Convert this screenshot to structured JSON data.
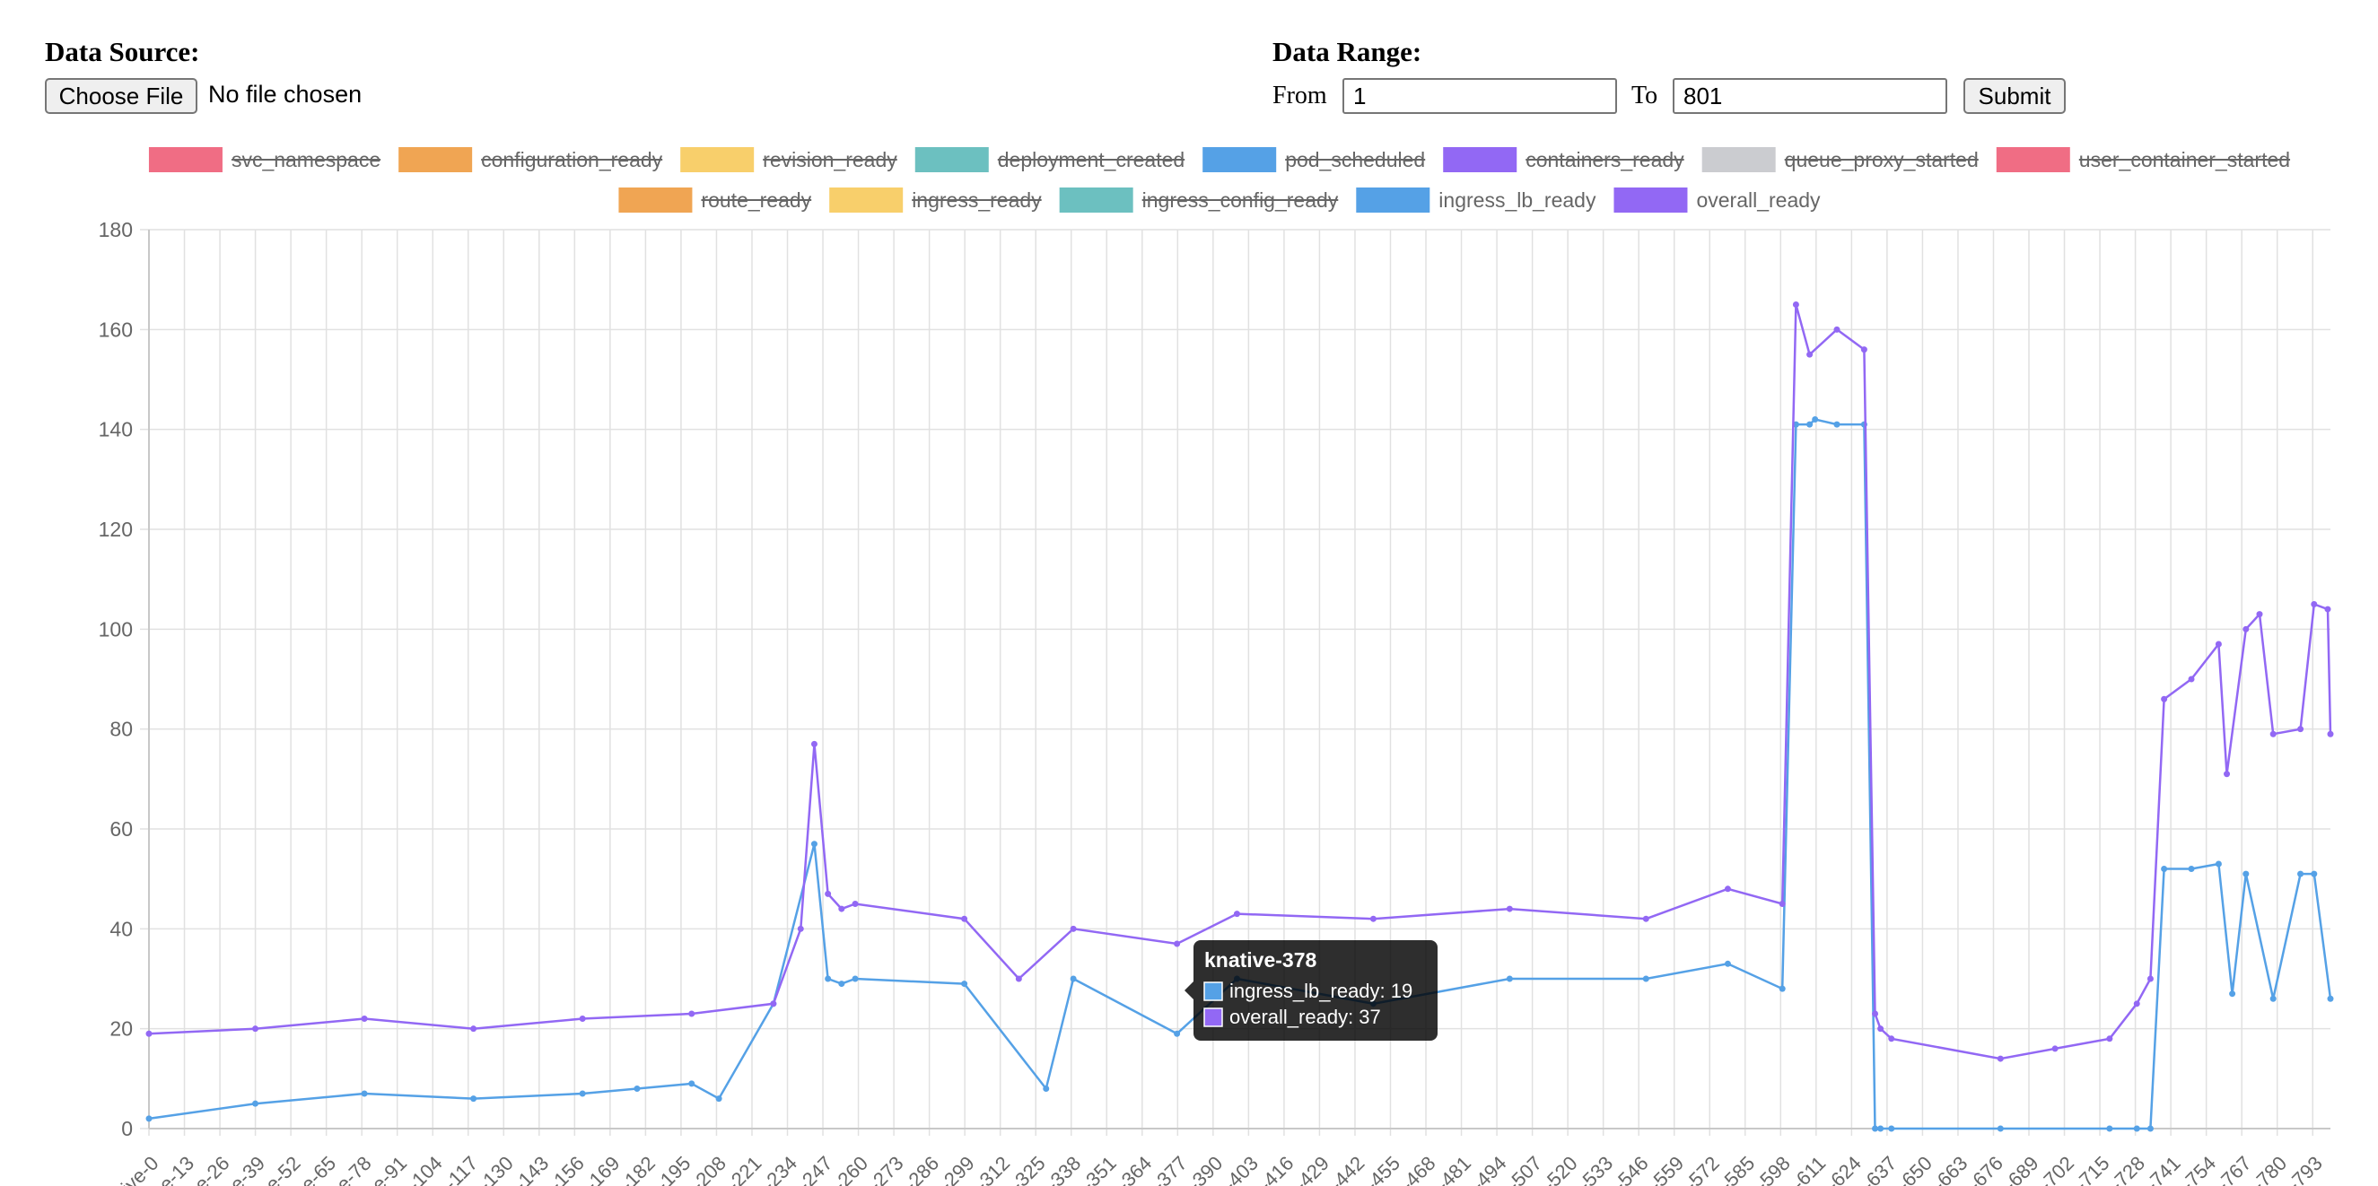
{
  "data_source": {
    "title": "Data Source:",
    "choose_file_label": "Choose File",
    "file_status": "No file chosen"
  },
  "data_range": {
    "title": "Data Range:",
    "from_label": "From",
    "from_value": "1",
    "to_label": "To",
    "to_value": "801",
    "submit_label": "Submit"
  },
  "tooltip": {
    "title": "knative-378",
    "lines": [
      "ingress_lb_ready: 19",
      "overall_ready: 37"
    ]
  },
  "chart_data": {
    "type": "line",
    "ylim": [
      0,
      180
    ],
    "y_ticks": [
      0,
      20,
      40,
      60,
      80,
      100,
      120,
      140,
      160,
      180
    ],
    "grid": true,
    "legend_position": "top",
    "x_tick_labels": [
      "ive-0",
      "e-13",
      "e-26",
      "e-39",
      "e-52",
      "e-65",
      "e-78",
      "e-91",
      "-104",
      "-117",
      "-130",
      "-143",
      "-156",
      "-169",
      "-182",
      "-195",
      "-208",
      "-221",
      "-234",
      "-247",
      "-260",
      "-273",
      "-286",
      "-299",
      "-312",
      "-325",
      "-338",
      "-351",
      "-364",
      "-377",
      "-390",
      "-403",
      "-416",
      "-429",
      "-442",
      "-455",
      "-468",
      "-481",
      "-494",
      "-507",
      "-520",
      "-533",
      "-546",
      "-559",
      "-572",
      "-585",
      "-598",
      "-611",
      "-624",
      "-637",
      "-650",
      "-663",
      "-676",
      "-689",
      "-702",
      "-715",
      "-728",
      "-741",
      "-754",
      "-767",
      "-780",
      "-793"
    ],
    "legend": [
      {
        "name": "svc_namespace",
        "color": "#f06d84",
        "hidden": true
      },
      {
        "name": "configuration_ready",
        "color": "#f0a553",
        "hidden": true
      },
      {
        "name": "revision_ready",
        "color": "#f8cf6b",
        "hidden": true
      },
      {
        "name": "deployment_created",
        "color": "#6cc0c0",
        "hidden": true
      },
      {
        "name": "pod_scheduled",
        "color": "#55a1e6",
        "hidden": true
      },
      {
        "name": "containers_ready",
        "color": "#9268f4",
        "hidden": true
      },
      {
        "name": "queue_proxy_started",
        "color": "#cbccd0",
        "hidden": true
      },
      {
        "name": "user_container_started",
        "color": "#f06d84",
        "hidden": true
      },
      {
        "name": "route_ready",
        "color": "#f0a553",
        "hidden": true
      },
      {
        "name": "ingress_ready",
        "color": "#f8cf6b",
        "hidden": true
      },
      {
        "name": "ingress_config_ready",
        "color": "#6cc0c0",
        "hidden": true
      },
      {
        "name": "ingress_lb_ready",
        "color": "#55a1e6",
        "hidden": false
      },
      {
        "name": "overall_ready",
        "color": "#9268f4",
        "hidden": false
      }
    ],
    "series": [
      {
        "name": "ingress_lb_ready",
        "color": "#55a1e6",
        "x": [
          1,
          40,
          80,
          120,
          160,
          180,
          200,
          210,
          230,
          245,
          250,
          255,
          260,
          300,
          330,
          340,
          378,
          400,
          450,
          500,
          550,
          580,
          600,
          605,
          610,
          612,
          620,
          630,
          634,
          636,
          640,
          680,
          720,
          730,
          735,
          740,
          750,
          760,
          765,
          770,
          780,
          790,
          795,
          801
        ],
        "y": [
          2,
          5,
          7,
          6,
          7,
          8,
          9,
          6,
          25,
          57,
          30,
          29,
          30,
          29,
          8,
          30,
          19,
          30,
          25,
          30,
          30,
          33,
          28,
          141,
          141,
          142,
          141,
          141,
          0,
          0,
          0,
          0,
          0,
          0,
          0,
          52,
          52,
          53,
          27,
          51,
          26,
          51,
          51,
          26
        ]
      },
      {
        "name": "overall_ready",
        "color": "#9268f4",
        "x": [
          1,
          40,
          80,
          120,
          160,
          200,
          230,
          240,
          245,
          250,
          255,
          260,
          300,
          320,
          340,
          378,
          400,
          450,
          500,
          550,
          580,
          600,
          605,
          610,
          620,
          630,
          634,
          636,
          640,
          680,
          700,
          720,
          730,
          735,
          740,
          750,
          760,
          763,
          770,
          775,
          780,
          790,
          795,
          800,
          801
        ],
        "y": [
          19,
          20,
          22,
          20,
          22,
          23,
          25,
          40,
          77,
          47,
          44,
          45,
          42,
          30,
          40,
          37,
          43,
          42,
          44,
          42,
          48,
          45,
          165,
          155,
          160,
          156,
          23,
          20,
          18,
          14,
          16,
          18,
          25,
          30,
          86,
          90,
          97,
          71,
          100,
          103,
          79,
          80,
          105,
          104,
          79
        ]
      }
    ]
  }
}
